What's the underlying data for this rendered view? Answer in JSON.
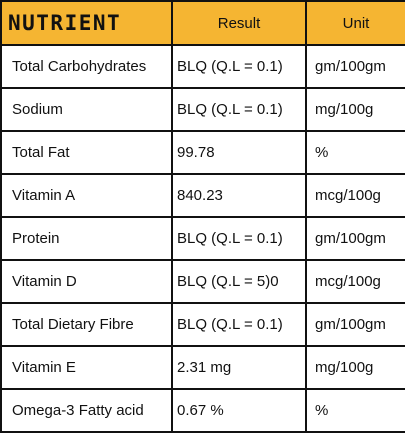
{
  "table": {
    "headers": {
      "nutrient": "NUTRIENT",
      "result": "Result",
      "unit": "Unit"
    },
    "rows": [
      {
        "nutrient": "Total Carbohydrates",
        "result": "BLQ (Q.L = 0.1)",
        "unit": "gm/100gm"
      },
      {
        "nutrient": "Sodium",
        "result": "BLQ (Q.L = 0.1)",
        "unit": "mg/100g"
      },
      {
        "nutrient": "Total Fat",
        "result": "99.78",
        "unit": "%"
      },
      {
        "nutrient": "Vitamin A",
        "result": "840.23",
        "unit": "mcg/100g"
      },
      {
        "nutrient": "Protein",
        "result": "BLQ (Q.L = 0.1)",
        "unit": "gm/100gm"
      },
      {
        "nutrient": "Vitamin D",
        "result": "BLQ (Q.L = 5)0",
        "unit": "mcg/100g"
      },
      {
        "nutrient": "Total Dietary Fibre",
        "result": "BLQ (Q.L = 0.1)",
        "unit": "gm/100gm"
      },
      {
        "nutrient": "Vitamin E",
        "result": "2.31 mg",
        "unit": "mg/100g"
      },
      {
        "nutrient": "Omega-3 Fatty acid",
        "result": "0.67 %",
        "unit": "%"
      }
    ]
  },
  "colors": {
    "header_background": "#f5b532",
    "border": "#111111",
    "text": "#111111"
  }
}
